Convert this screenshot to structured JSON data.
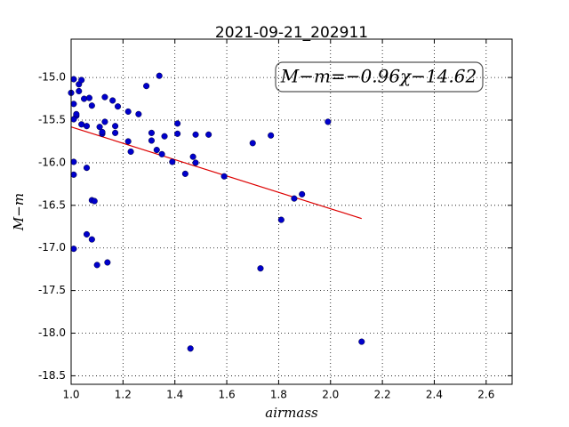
{
  "chart_data": {
    "type": "scatter",
    "title": "2021-09-21_202911",
    "xlabel": "airmass",
    "ylabel": "M−m",
    "annotation": "M−m=−0.96χ−14.62",
    "xlim": [
      1.0,
      2.7
    ],
    "ylim": [
      -18.6,
      -14.55
    ],
    "xticks": [
      {
        "value": 1,
        "label": "1.0"
      },
      1.2,
      1.4,
      1.6,
      1.8,
      {
        "value": 2,
        "label": "2.0"
      },
      2.2,
      2.4,
      2.6
    ],
    "yticks": [
      {
        "value": -15,
        "label": "-15.0"
      },
      -15.5,
      {
        "value": -16,
        "label": "-16.0"
      },
      -16.5,
      {
        "value": -17,
        "label": "-17.0"
      },
      -17.5,
      {
        "value": -18,
        "label": "-18.0"
      },
      -18.5
    ],
    "grid": true,
    "series": [
      {
        "color": "#0000cc",
        "x": [
          1.0,
          1.01,
          1.03,
          1.04,
          1.03,
          1.01,
          1.02,
          1.02,
          1.01,
          1.04,
          1.06,
          1.05,
          1.07,
          1.08,
          1.11,
          1.12,
          1.12,
          1.13,
          1.13,
          1.16,
          1.17,
          1.17,
          1.18,
          1.22,
          1.22,
          1.23,
          1.26,
          1.29,
          1.31,
          1.31,
          1.33,
          1.34,
          1.35,
          1.36,
          1.39,
          1.41,
          1.41,
          1.44,
          1.47,
          1.48,
          1.48,
          1.53,
          1.59,
          1.7,
          1.77,
          1.81,
          1.86,
          1.89,
          1.99,
          1.01,
          1.01,
          1.06,
          1.08,
          1.09,
          1.06,
          1.08,
          1.14,
          1.1,
          1.01,
          1.73,
          1.46,
          2.12
        ],
        "values": [
          -15.18,
          -15.02,
          -15.08,
          -15.03,
          -15.16,
          -15.31,
          -15.45,
          -15.43,
          -15.49,
          -15.55,
          -15.57,
          -15.25,
          -15.24,
          -15.33,
          -15.58,
          -15.66,
          -15.64,
          -15.23,
          -15.52,
          -15.27,
          -15.65,
          -15.57,
          -15.34,
          -15.4,
          -15.75,
          -15.87,
          -15.43,
          -15.1,
          -15.74,
          -15.65,
          -15.85,
          -14.98,
          -15.9,
          -15.69,
          -15.99,
          -15.54,
          -15.66,
          -16.13,
          -15.93,
          -16.0,
          -15.67,
          -15.67,
          -16.16,
          -15.77,
          -15.68,
          -16.67,
          -16.42,
          -16.37,
          -15.52,
          -15.99,
          -16.14,
          -16.06,
          -16.44,
          -16.45,
          -16.84,
          -16.9,
          -17.17,
          -17.2,
          -17.01,
          -17.24,
          -18.18,
          -18.1
        ]
      }
    ],
    "fit_line": {
      "color": "#dd0000",
      "x": [
        1.0,
        2.12
      ],
      "values": [
        -15.58,
        -16.655
      ]
    }
  }
}
